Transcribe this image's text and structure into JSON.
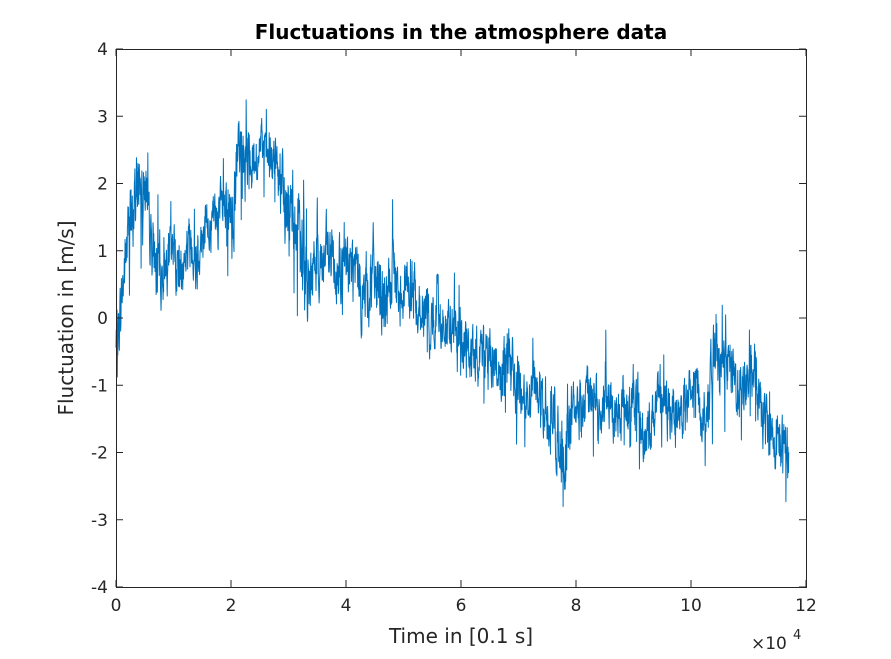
{
  "chart_data": {
    "type": "line",
    "title": "Fluctuations in the atmosphere data",
    "xlabel": "Time in [0.1 s]",
    "ylabel": "Fluctuation in [m/s]",
    "x_exponent_label": "×10",
    "x_exponent_power": "4",
    "xlim": [
      0,
      120000
    ],
    "ylim": [
      -4,
      4
    ],
    "xticks": [
      0,
      20000,
      40000,
      60000,
      80000,
      100000,
      120000
    ],
    "xtick_labels": [
      "0",
      "2",
      "4",
      "6",
      "8",
      "10",
      "12"
    ],
    "yticks": [
      -4,
      -3,
      -2,
      -1,
      0,
      1,
      2,
      3,
      4
    ],
    "ytick_labels": [
      "-4",
      "-3",
      "-2",
      "-1",
      "0",
      "1",
      "2",
      "3",
      "4"
    ],
    "grid": false,
    "line_color": "#0072BD",
    "series": [
      {
        "x": [
          0,
          1000,
          2000,
          3000,
          4000,
          5000,
          6000,
          7000,
          8000,
          9000,
          10000,
          11000,
          12000,
          13000,
          14000,
          15000,
          16000,
          17000,
          18000,
          19000,
          20000,
          21000,
          22000,
          23000,
          24000,
          25000,
          26000,
          27000,
          28000,
          29000,
          30000,
          31000,
          32000,
          33000,
          34000,
          35000,
          36000,
          37000,
          38000,
          39000,
          40000,
          41000,
          42000,
          43000,
          44000,
          45000,
          46000,
          47000,
          48000,
          49000,
          50000,
          51000,
          52000,
          53000,
          54000,
          55000,
          56000,
          57000,
          58000,
          59000,
          60000,
          61000,
          62000,
          63000,
          64000,
          65000,
          66000,
          67000,
          68000,
          69000,
          70000,
          71000,
          72000,
          73000,
          74000,
          75000,
          76000,
          77000,
          78000,
          79000,
          80000,
          81000,
          82000,
          83000,
          84000,
          85000,
          86000,
          87000,
          88000,
          89000,
          90000,
          91000,
          92000,
          93000,
          94000,
          95000,
          96000,
          97000,
          98000,
          99000,
          100000,
          101000,
          102000,
          103000,
          104000,
          105000,
          106000,
          107000,
          108000,
          109000,
          110000,
          111000,
          112000,
          113000,
          114000,
          115000,
          116000,
          117000
        ],
        "mean": [
          -0.5,
          0.3,
          1.2,
          1.5,
          2.2,
          2.0,
          1.2,
          0.8,
          0.7,
          0.9,
          1.1,
          0.6,
          0.9,
          1.2,
          1.0,
          1.2,
          1.4,
          1.5,
          1.5,
          1.6,
          1.3,
          2.2,
          2.4,
          2.6,
          2.3,
          2.5,
          2.4,
          2.3,
          2.3,
          1.8,
          1.6,
          1.5,
          1.0,
          0.8,
          0.6,
          1.0,
          0.8,
          0.9,
          0.8,
          0.7,
          0.8,
          0.7,
          0.6,
          0.3,
          0.5,
          0.7,
          0.4,
          0.2,
          0.6,
          0.4,
          0.5,
          0.6,
          0.3,
          0.2,
          0.0,
          -0.1,
          0.1,
          0.0,
          -0.3,
          -0.2,
          -0.3,
          -0.5,
          -0.6,
          -0.5,
          -0.5,
          -0.8,
          -0.7,
          -0.9,
          -0.7,
          -0.7,
          -1.0,
          -1.1,
          -1.3,
          -1.0,
          -1.2,
          -1.5,
          -1.4,
          -1.9,
          -2.0,
          -1.6,
          -1.2,
          -1.4,
          -1.0,
          -1.3,
          -1.5,
          -1.2,
          -1.2,
          -1.5,
          -1.2,
          -1.3,
          -1.1,
          -1.5,
          -1.8,
          -1.5,
          -1.3,
          -1.2,
          -1.4,
          -1.3,
          -1.4,
          -1.4,
          -1.1,
          -1.0,
          -1.5,
          -1.2,
          -0.6,
          -0.8,
          -0.6,
          -0.8,
          -1.0,
          -1.0,
          -0.9,
          -0.7,
          -1.4,
          -1.6,
          -1.8,
          -1.9,
          -2.0,
          -1.9
        ],
        "amplitude": [
          0.6,
          0.8,
          0.9,
          0.9,
          1.1,
          0.7,
          0.7,
          0.8,
          0.8,
          0.7,
          0.6,
          0.8,
          0.6,
          0.7,
          0.9,
          0.5,
          0.6,
          0.6,
          0.7,
          0.8,
          1.1,
          0.9,
          1.2,
          0.8,
          0.7,
          0.6,
          0.6,
          0.6,
          0.8,
          1.0,
          1.1,
          1.0,
          1.1,
          1.2,
          0.9,
          1.0,
          0.9,
          0.8,
          0.6,
          0.9,
          0.9,
          0.8,
          0.8,
          0.8,
          0.9,
          1.0,
          0.9,
          0.8,
          0.8,
          0.7,
          0.8,
          0.7,
          0.8,
          0.7,
          0.8,
          0.7,
          0.7,
          0.7,
          0.7,
          0.8,
          0.7,
          0.8,
          0.6,
          0.7,
          0.7,
          0.7,
          0.6,
          0.7,
          0.8,
          0.7,
          0.9,
          0.6,
          0.6,
          0.6,
          0.7,
          0.7,
          0.7,
          0.9,
          0.8,
          0.8,
          0.7,
          0.7,
          0.7,
          0.7,
          0.8,
          0.6,
          0.6,
          0.7,
          0.7,
          0.7,
          0.7,
          0.8,
          0.9,
          0.7,
          0.6,
          0.7,
          0.7,
          0.6,
          0.6,
          0.7,
          0.7,
          0.6,
          0.6,
          0.7,
          0.8,
          0.8,
          0.7,
          0.8,
          0.7,
          0.7,
          0.8,
          0.7,
          0.6,
          0.7,
          0.7,
          0.8,
          0.7,
          0.8
        ],
        "seed": 7
      }
    ]
  }
}
